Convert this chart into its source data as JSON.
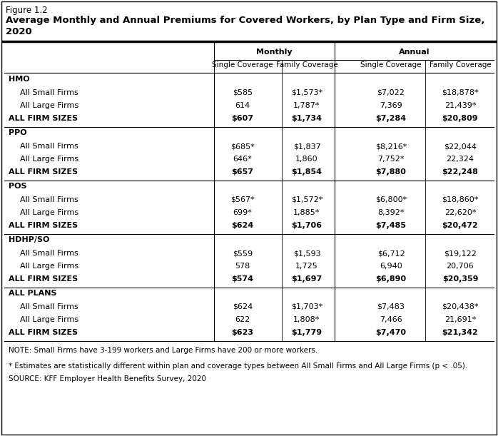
{
  "title_line1": "Figure 1.2",
  "title_line2": "Average Monthly and Annual Premiums for Covered Workers, by Plan Type and Firm Size,",
  "title_line3": "2020",
  "col_headers_top": [
    "Monthly",
    "Annual"
  ],
  "col_headers_sub": [
    "Single Coverage",
    "Family Coverage",
    "Single Coverage",
    "Family Coverage"
  ],
  "sections": [
    {
      "header": "HMO",
      "rows": [
        {
          "label": "All Small Firms",
          "indent": true,
          "values": [
            "$585",
            "$1,573*",
            "$7,022",
            "$18,878*"
          ],
          "bold": false
        },
        {
          "label": "All Large Firms",
          "indent": true,
          "values": [
            "614",
            "1,787*",
            "7,369",
            "21,439*"
          ],
          "bold": false
        },
        {
          "label": "ALL FIRM SIZES",
          "indent": false,
          "values": [
            "$607",
            "$1,734",
            "$7,284",
            "$20,809"
          ],
          "bold": true
        }
      ]
    },
    {
      "header": "PPO",
      "rows": [
        {
          "label": "All Small Firms",
          "indent": true,
          "values": [
            "$685*",
            "$1,837",
            "$8,216*",
            "$22,044"
          ],
          "bold": false
        },
        {
          "label": "All Large Firms",
          "indent": true,
          "values": [
            "646*",
            "1,860",
            "7,752*",
            "22,324"
          ],
          "bold": false
        },
        {
          "label": "ALL FIRM SIZES",
          "indent": false,
          "values": [
            "$657",
            "$1,854",
            "$7,880",
            "$22,248"
          ],
          "bold": true
        }
      ]
    },
    {
      "header": "POS",
      "rows": [
        {
          "label": "All Small Firms",
          "indent": true,
          "values": [
            "$567*",
            "$1,572*",
            "$6,800*",
            "$18,860*"
          ],
          "bold": false
        },
        {
          "label": "All Large Firms",
          "indent": true,
          "values": [
            "699*",
            "1,885*",
            "8,392*",
            "22,620*"
          ],
          "bold": false
        },
        {
          "label": "ALL FIRM SIZES",
          "indent": false,
          "values": [
            "$624",
            "$1,706",
            "$7,485",
            "$20,472"
          ],
          "bold": true
        }
      ]
    },
    {
      "header": "HDHP/SO",
      "rows": [
        {
          "label": "All Small Firms",
          "indent": true,
          "values": [
            "$559",
            "$1,593",
            "$6,712",
            "$19,122"
          ],
          "bold": false
        },
        {
          "label": "All Large Firms",
          "indent": true,
          "values": [
            "578",
            "1,725",
            "6,940",
            "20,706"
          ],
          "bold": false
        },
        {
          "label": "ALL FIRM SIZES",
          "indent": false,
          "values": [
            "$574",
            "$1,697",
            "$6,890",
            "$20,359"
          ],
          "bold": true
        }
      ]
    },
    {
      "header": "ALL PLANS",
      "rows": [
        {
          "label": "All Small Firms",
          "indent": true,
          "values": [
            "$624",
            "$1,703*",
            "$7,483",
            "$20,438*"
          ],
          "bold": false
        },
        {
          "label": "All Large Firms",
          "indent": true,
          "values": [
            "622",
            "1,808*",
            "7,466",
            "21,691*"
          ],
          "bold": false
        },
        {
          "label": "ALL FIRM SIZES",
          "indent": false,
          "values": [
            "$623",
            "$1,779",
            "$7,470",
            "$21,342"
          ],
          "bold": true
        }
      ]
    }
  ],
  "note1": "NOTE: Small Firms have 3-199 workers and Large Firms have 200 or more workers.",
  "note2": "* Estimates are statistically different within plan and coverage types between All Small Firms and All Large Firms (p < .05).",
  "source": "SOURCE: KFF Employer Health Benefits Survey, 2020",
  "bg_color": "#ffffff",
  "font_size_title1": 8.5,
  "font_size_title2": 9.5,
  "font_size_table": 8.0,
  "font_size_note": 7.5
}
